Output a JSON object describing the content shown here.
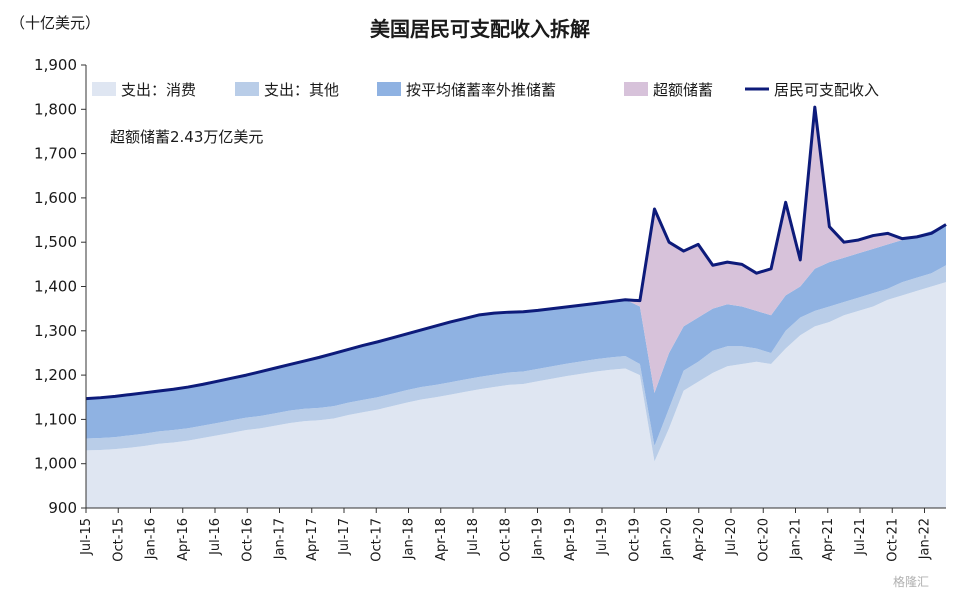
{
  "chart_data": {
    "type": "area",
    "title": "美国居民可支配收入拆解",
    "unit_label": "（十亿美元）",
    "annotation": "超额储蓄2.43万亿美元",
    "watermark": "格隆汇",
    "ylim": [
      900,
      1900
    ],
    "yticks": [
      "900",
      "1,000",
      "1,100",
      "1,200",
      "1,300",
      "1,400",
      "1,500",
      "1,600",
      "1,700",
      "1,800",
      "1,900"
    ],
    "ytick_values": [
      900,
      1000,
      1100,
      1200,
      1300,
      1400,
      1500,
      1600,
      1700,
      1800,
      1900
    ],
    "xticks": [
      "Jul-15",
      "Oct-15",
      "Jan-16",
      "Apr-16",
      "Jul-16",
      "Oct-16",
      "Jan-17",
      "Apr-17",
      "Jul-17",
      "Oct-17",
      "Jan-18",
      "Apr-18",
      "Jul-18",
      "Oct-18",
      "Jan-19",
      "Apr-19",
      "Jul-19",
      "Oct-19",
      "Jan-20",
      "Apr-20",
      "Jul-20",
      "Oct-20",
      "Jan-21",
      "Apr-21",
      "Jul-21",
      "Oct-21",
      "Jan-22"
    ],
    "legend": [
      {
        "name": "支出：消费",
        "kind": "area",
        "color": "#dfe6f2"
      },
      {
        "name": "支出：其他",
        "kind": "area",
        "color": "#b9cde8"
      },
      {
        "name": "按平均储蓄率外推储蓄",
        "kind": "area",
        "color": "#8fb2e2"
      },
      {
        "name": "超额储蓄",
        "kind": "area",
        "color": "#d7c2da"
      },
      {
        "name": "居民可支配收入",
        "kind": "line",
        "color": "#0d1b7a"
      }
    ],
    "series": {
      "consumption": [
        1030,
        1031,
        1033,
        1036,
        1040,
        1045,
        1048,
        1052,
        1058,
        1064,
        1070,
        1076,
        1080,
        1086,
        1092,
        1096,
        1098,
        1102,
        1110,
        1116,
        1122,
        1130,
        1138,
        1145,
        1150,
        1156,
        1162,
        1168,
        1173,
        1178,
        1180,
        1186,
        1192,
        1198,
        1203,
        1208,
        1212,
        1215,
        1200,
        1005,
        1080,
        1165,
        1185,
        1205,
        1220,
        1225,
        1230,
        1225,
        1260,
        1290,
        1310,
        1320,
        1335,
        1345,
        1355,
        1370,
        1380,
        1390,
        1400,
        1410
      ],
      "other_top": [
        1057,
        1058,
        1060,
        1064,
        1068,
        1073,
        1076,
        1080,
        1086,
        1092,
        1098,
        1104,
        1108,
        1114,
        1120,
        1124,
        1126,
        1130,
        1138,
        1144,
        1150,
        1158,
        1166,
        1173,
        1178,
        1184,
        1190,
        1196,
        1201,
        1206,
        1208,
        1214,
        1220,
        1226,
        1231,
        1236,
        1240,
        1243,
        1225,
        1040,
        1125,
        1210,
        1230,
        1255,
        1265,
        1265,
        1260,
        1250,
        1300,
        1330,
        1345,
        1355,
        1365,
        1375,
        1385,
        1395,
        1410,
        1420,
        1430,
        1448
      ],
      "avg_saving_top": [
        1147,
        1149,
        1152,
        1156,
        1160,
        1164,
        1168,
        1173,
        1179,
        1186,
        1193,
        1200,
        1208,
        1216,
        1224,
        1232,
        1240,
        1249,
        1258,
        1267,
        1275,
        1284,
        1293,
        1302,
        1311,
        1320,
        1328,
        1336,
        1340,
        1342,
        1343,
        1346,
        1350,
        1354,
        1358,
        1362,
        1366,
        1370,
        1355,
        1160,
        1250,
        1310,
        1330,
        1350,
        1360,
        1355,
        1345,
        1335,
        1380,
        1400,
        1440,
        1455,
        1465,
        1475,
        1485,
        1495,
        1505,
        1515,
        1525,
        1540
      ],
      "income": [
        1147,
        1149,
        1152,
        1156,
        1160,
        1164,
        1168,
        1173,
        1179,
        1186,
        1193,
        1200,
        1208,
        1216,
        1224,
        1232,
        1240,
        1249,
        1258,
        1267,
        1275,
        1284,
        1293,
        1302,
        1311,
        1320,
        1328,
        1336,
        1340,
        1342,
        1343,
        1346,
        1350,
        1354,
        1358,
        1362,
        1366,
        1370,
        1368,
        1575,
        1500,
        1480,
        1495,
        1448,
        1455,
        1450,
        1430,
        1440,
        1590,
        1460,
        1805,
        1535,
        1500,
        1505,
        1515,
        1520,
        1508,
        1512,
        1520,
        1540
      ]
    }
  }
}
